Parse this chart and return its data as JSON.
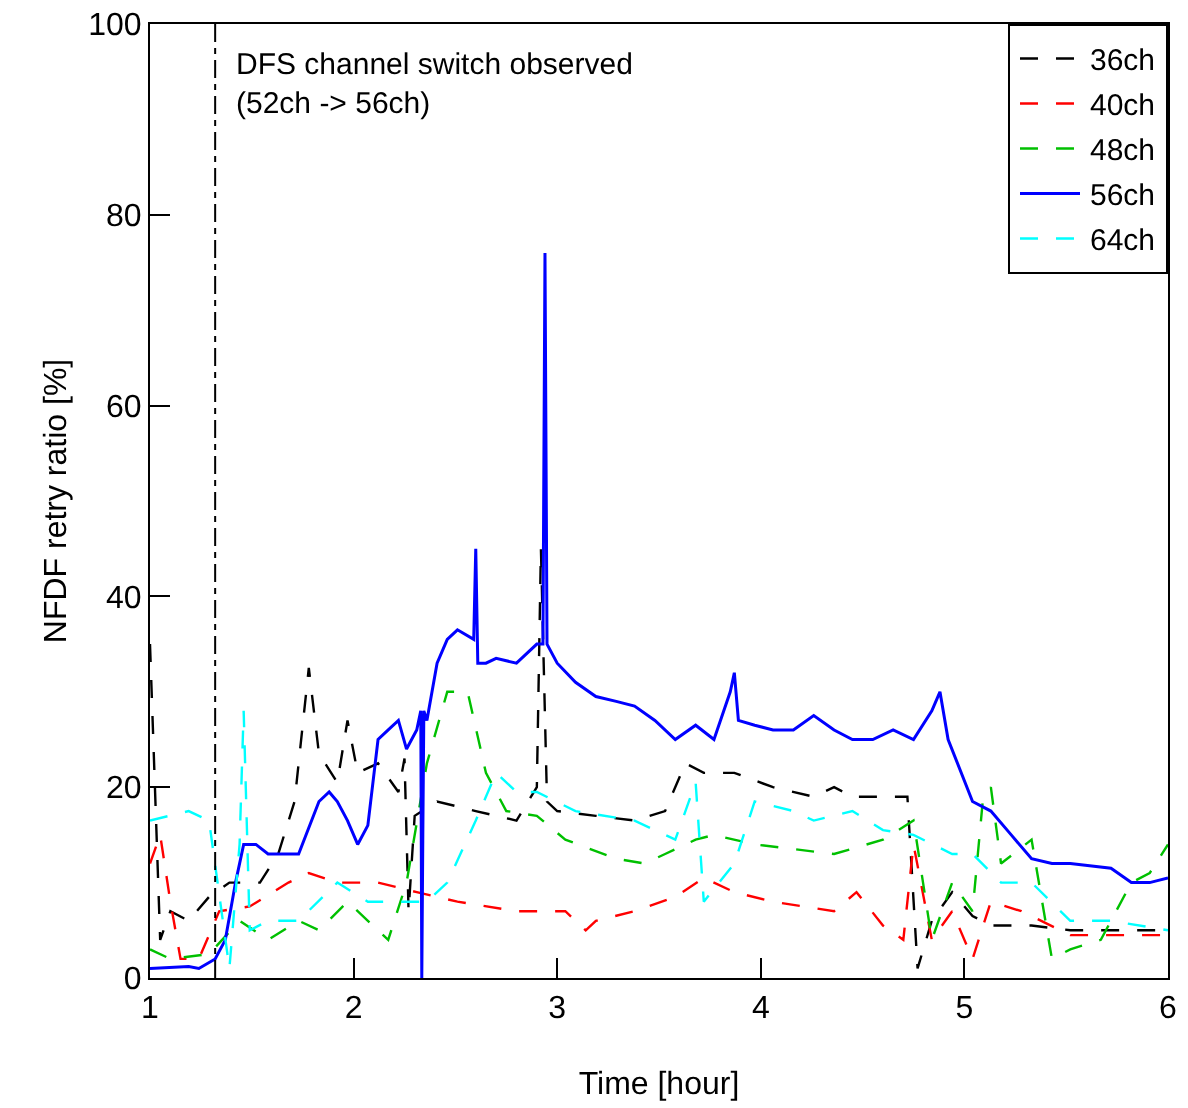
{
  "chart_data": {
    "type": "line",
    "xlabel": "Time [hour]",
    "ylabel": "NFDF retry ratio [%]",
    "xlim": [
      1,
      6
    ],
    "xticks": [
      1,
      2,
      3,
      4,
      5,
      6
    ],
    "ylim": [
      0,
      100
    ],
    "yticks": [
      0,
      20,
      40,
      60,
      80,
      100
    ],
    "grid": false,
    "legend": "top right",
    "marker": "none",
    "ref_lines": [
      {
        "axis": "x",
        "value": 1.32,
        "label": "DFS channel switch observed\n(52ch -> 56ch)",
        "color": "#000000",
        "line_style": "dashdot"
      }
    ],
    "series": [
      {
        "name": "36ch",
        "color": "#000000",
        "line_style": "dashed",
        "x": [
          1.0,
          1.05,
          1.1,
          1.19,
          1.29,
          1.39,
          1.54,
          1.63,
          1.71,
          1.78,
          1.83,
          1.92,
          1.97,
          2.02,
          2.12,
          2.22,
          2.25,
          2.27,
          2.3,
          2.41,
          2.6,
          2.8,
          2.9,
          2.92,
          2.95,
          3.0,
          3.19,
          3.38,
          3.53,
          3.63,
          3.72,
          3.87,
          4.06,
          4.26,
          4.36,
          4.45,
          4.72,
          4.77,
          4.84,
          4.94,
          5.04,
          5.13,
          5.33,
          5.52,
          6.0
        ],
        "values": [
          35,
          4,
          7,
          6,
          8.5,
          10,
          10,
          13,
          18.5,
          32.5,
          23.5,
          20.5,
          27,
          21.5,
          22.5,
          19.5,
          23,
          7,
          17,
          18.5,
          17.5,
          16.5,
          20,
          45,
          18.5,
          17.5,
          17,
          16.5,
          17.5,
          22.5,
          21.5,
          21.5,
          20,
          19,
          20,
          19,
          19,
          1,
          6,
          9,
          6.5,
          5.5,
          5.5,
          5,
          5
        ]
      },
      {
        "name": "40ch",
        "color": "#ff0000",
        "line_style": "dashed",
        "x": [
          1.0,
          1.05,
          1.1,
          1.15,
          1.24,
          1.34,
          1.49,
          1.68,
          1.78,
          1.92,
          2.12,
          2.31,
          2.51,
          2.8,
          3.04,
          3.14,
          3.19,
          3.38,
          3.58,
          3.72,
          3.87,
          4.06,
          4.36,
          4.47,
          4.6,
          4.7,
          4.75,
          4.84,
          4.94,
          5.04,
          5.13,
          5.28,
          5.52,
          6.0
        ],
        "values": [
          12,
          15,
          8,
          2,
          2,
          7,
          7.5,
          10,
          11,
          10,
          10,
          9,
          8,
          7,
          7,
          5,
          6,
          7,
          8.5,
          10.5,
          9,
          8,
          7,
          9,
          5.5,
          4,
          14,
          4,
          7,
          2,
          8,
          7,
          4.5,
          4.5
        ]
      },
      {
        "name": "48ch",
        "color": "#00c000",
        "line_style": "dashed",
        "x": [
          1.0,
          1.1,
          1.29,
          1.44,
          1.58,
          1.73,
          1.83,
          1.97,
          2.17,
          2.26,
          2.36,
          2.46,
          2.56,
          2.65,
          2.75,
          2.9,
          3.04,
          3.29,
          3.43,
          3.53,
          3.68,
          3.77,
          3.97,
          4.36,
          4.6,
          4.75,
          4.84,
          4.94,
          5.04,
          5.09,
          5.13,
          5.18,
          5.33,
          5.43,
          5.52,
          5.67,
          5.82,
          5.91,
          6.0
        ],
        "values": [
          3,
          2,
          2.5,
          6,
          4,
          6,
          5,
          8,
          4,
          10,
          22.5,
          30,
          30,
          21.5,
          17.5,
          17,
          14.5,
          12.5,
          12,
          13,
          14.5,
          15,
          14,
          13,
          14.5,
          16.5,
          4,
          10,
          7,
          18.5,
          20,
          12,
          14.5,
          2,
          3,
          4,
          10,
          11,
          14
        ]
      },
      {
        "name": "56ch",
        "color": "#0000ff",
        "line_style": "solid",
        "x": [
          1.0,
          1.19,
          1.24,
          1.32,
          1.37,
          1.42,
          1.46,
          1.52,
          1.58,
          1.68,
          1.73,
          1.83,
          1.88,
          1.92,
          1.97,
          2.02,
          2.07,
          2.12,
          2.17,
          2.22,
          2.26,
          2.31,
          2.33,
          2.335,
          2.34,
          2.345,
          2.36,
          2.41,
          2.46,
          2.51,
          2.59,
          2.6,
          2.61,
          2.65,
          2.7,
          2.8,
          2.9,
          2.93,
          2.94,
          2.95,
          3.0,
          3.09,
          3.19,
          3.29,
          3.38,
          3.48,
          3.58,
          3.68,
          3.77,
          3.85,
          3.87,
          3.89,
          3.97,
          4.06,
          4.16,
          4.26,
          4.36,
          4.45,
          4.55,
          4.65,
          4.75,
          4.84,
          4.88,
          4.92,
          5.04,
          5.13,
          5.23,
          5.33,
          5.43,
          5.52,
          5.72,
          5.82,
          5.91,
          6.0
        ],
        "values": [
          1,
          1.2,
          1,
          2,
          4,
          10,
          14,
          14,
          13,
          13,
          13,
          18.5,
          19.5,
          18.5,
          16.5,
          14,
          16,
          25,
          26,
          27,
          24,
          26,
          28,
          0,
          15,
          28,
          27,
          33,
          35.5,
          36.5,
          35.5,
          45,
          33,
          33,
          33.5,
          33,
          35,
          35,
          76,
          35,
          33,
          31,
          29.5,
          29,
          28.5,
          27,
          25,
          26.5,
          25,
          30,
          32,
          27,
          26.5,
          26,
          26,
          27.5,
          26,
          25,
          25,
          26,
          25,
          28,
          30,
          25,
          18.5,
          17.5,
          15,
          12.5,
          12,
          12,
          11.5,
          10,
          10,
          10.5
        ]
      },
      {
        "name": "64ch",
        "color": "#00ffff",
        "line_style": "dashed",
        "x": [
          1.0,
          1.19,
          1.29,
          1.39,
          1.44,
          1.46,
          1.49,
          1.58,
          1.73,
          1.92,
          2.07,
          2.22,
          2.36,
          2.46,
          2.6,
          2.7,
          2.8,
          2.9,
          3.09,
          3.38,
          3.58,
          3.68,
          3.72,
          3.87,
          3.97,
          4.16,
          4.26,
          4.45,
          4.6,
          4.75,
          4.94,
          5.04,
          5.18,
          5.33,
          5.52,
          5.72,
          6.0
        ],
        "values": [
          16.5,
          17.5,
          16.5,
          1,
          14,
          28,
          5,
          6,
          6,
          10,
          8,
          8,
          8,
          10,
          16.5,
          21.5,
          19.5,
          19.5,
          17.5,
          16.5,
          14.5,
          20.5,
          8,
          12,
          18.5,
          17.5,
          16.5,
          17.5,
          15.5,
          15,
          13,
          13,
          10,
          10,
          6,
          6,
          5
        ]
      }
    ]
  }
}
